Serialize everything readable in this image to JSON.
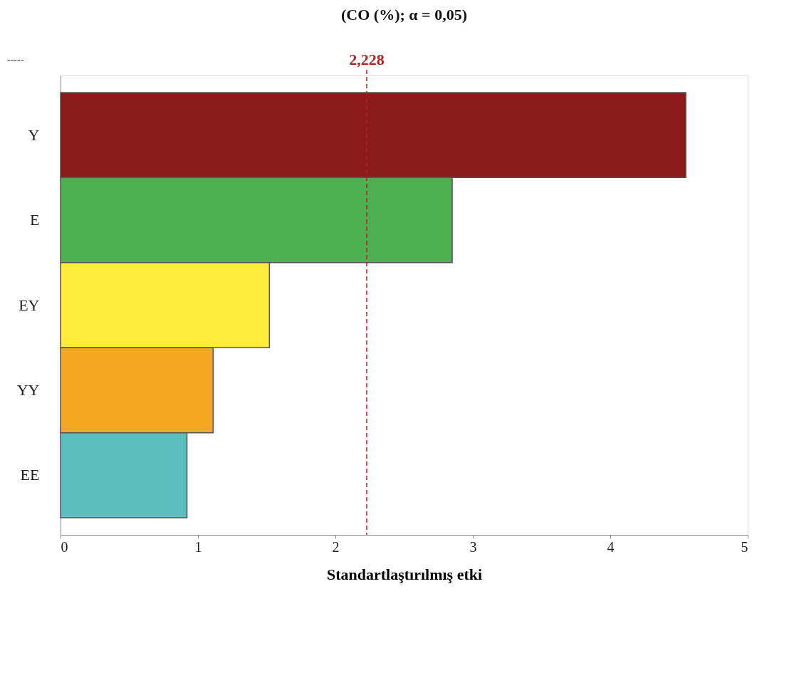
{
  "chart_data": {
    "type": "bar",
    "orientation": "horizontal",
    "title": "(CO (%); α = 0,05)",
    "xlabel": "Standartlaştırılmış etki",
    "categories": [
      "Y",
      "E",
      "EY",
      "YY",
      "EE"
    ],
    "values": [
      4.55,
      2.85,
      1.52,
      1.11,
      0.92
    ],
    "colors": [
      "#8b1a1a",
      "#4caf50",
      "#ffeb3b",
      "#f5a623",
      "#5bbfbf"
    ],
    "xlim": [
      0,
      5
    ],
    "xticks": [
      0,
      1,
      2,
      3,
      4,
      5
    ],
    "ref_lines": [
      {
        "axis": "x",
        "value": 2.228,
        "label": "2,228",
        "color": "#b22222",
        "line_style": "dashed"
      }
    ],
    "annotations": [
      "-----"
    ],
    "grid": false
  }
}
